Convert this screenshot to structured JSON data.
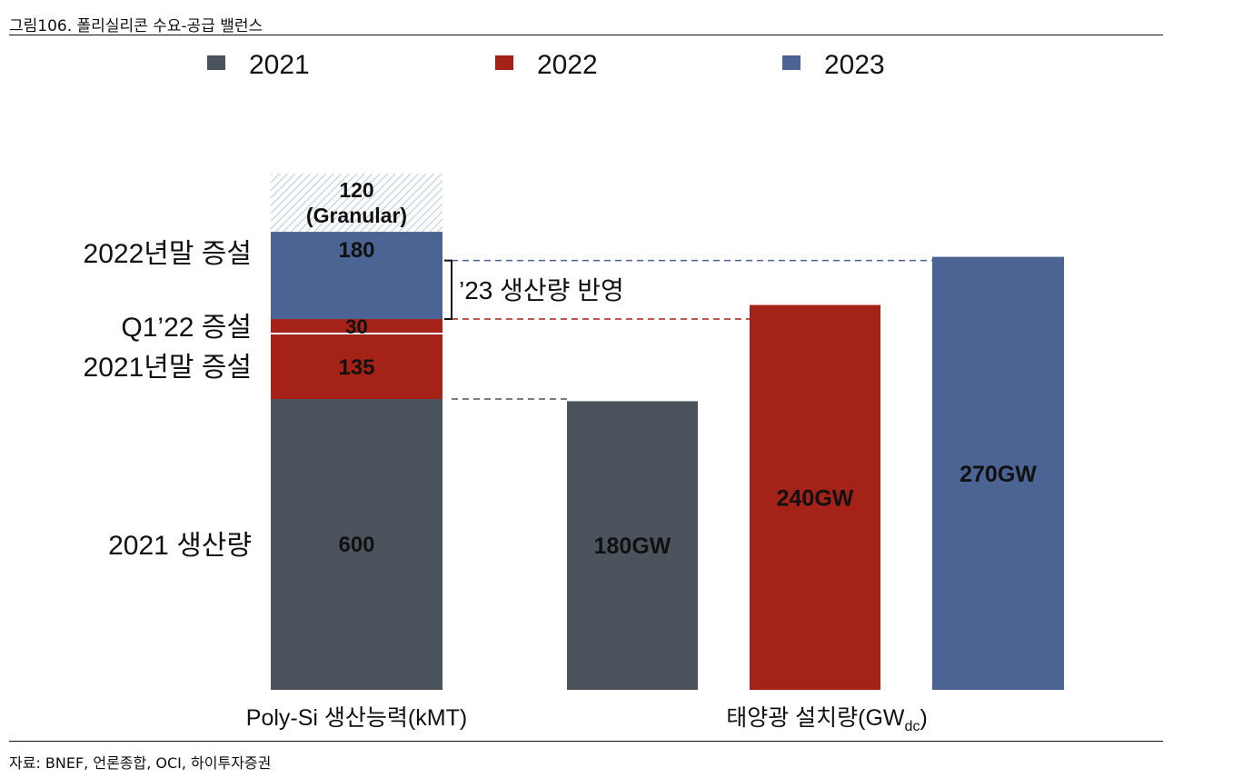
{
  "figure": {
    "title": "그림106.    폴리실리콘 수요-공급 밸런스",
    "source": "자료: BNEF, 언론종합, OCI, 하이투자증권"
  },
  "colors": {
    "2021": "#4b545c",
    "2022": "#a52219",
    "2023": "#4b6494"
  },
  "chart_data": {
    "type": "bar",
    "legend": [
      "2021",
      "2022",
      "2023"
    ],
    "legend_position": "top",
    "groups": [
      {
        "label": "Poly-Si 생산능력(kMT)",
        "stacked": true,
        "segments": [
          {
            "series": "2021",
            "value": 600,
            "label": "600",
            "annotation": "2021 생산량"
          },
          {
            "series": "2022",
            "value": 135,
            "label": "135",
            "annotation": "2021년말 증설"
          },
          {
            "series": "2022",
            "value": 30,
            "label": "30",
            "annotation": "Q1’22 증설"
          },
          {
            "series": "2023",
            "value": 180,
            "label": "180",
            "annotation": "2022년말 증설"
          },
          {
            "series": "Granular",
            "value": 120,
            "label_line1": "120",
            "label_line2": "(Granular)",
            "pattern": "hatched"
          }
        ]
      },
      {
        "label_main": "태양광 설치량(GW",
        "label_sub": "dc",
        "label_end": ")",
        "bars": [
          {
            "series": "2021",
            "value": 180,
            "label": "180GW"
          },
          {
            "series": "2022",
            "value": 240,
            "label": "240GW"
          },
          {
            "series": "2023",
            "value": 270,
            "label": "270GW"
          }
        ]
      }
    ],
    "bracket_annotation": "’23 생산량 반영"
  }
}
